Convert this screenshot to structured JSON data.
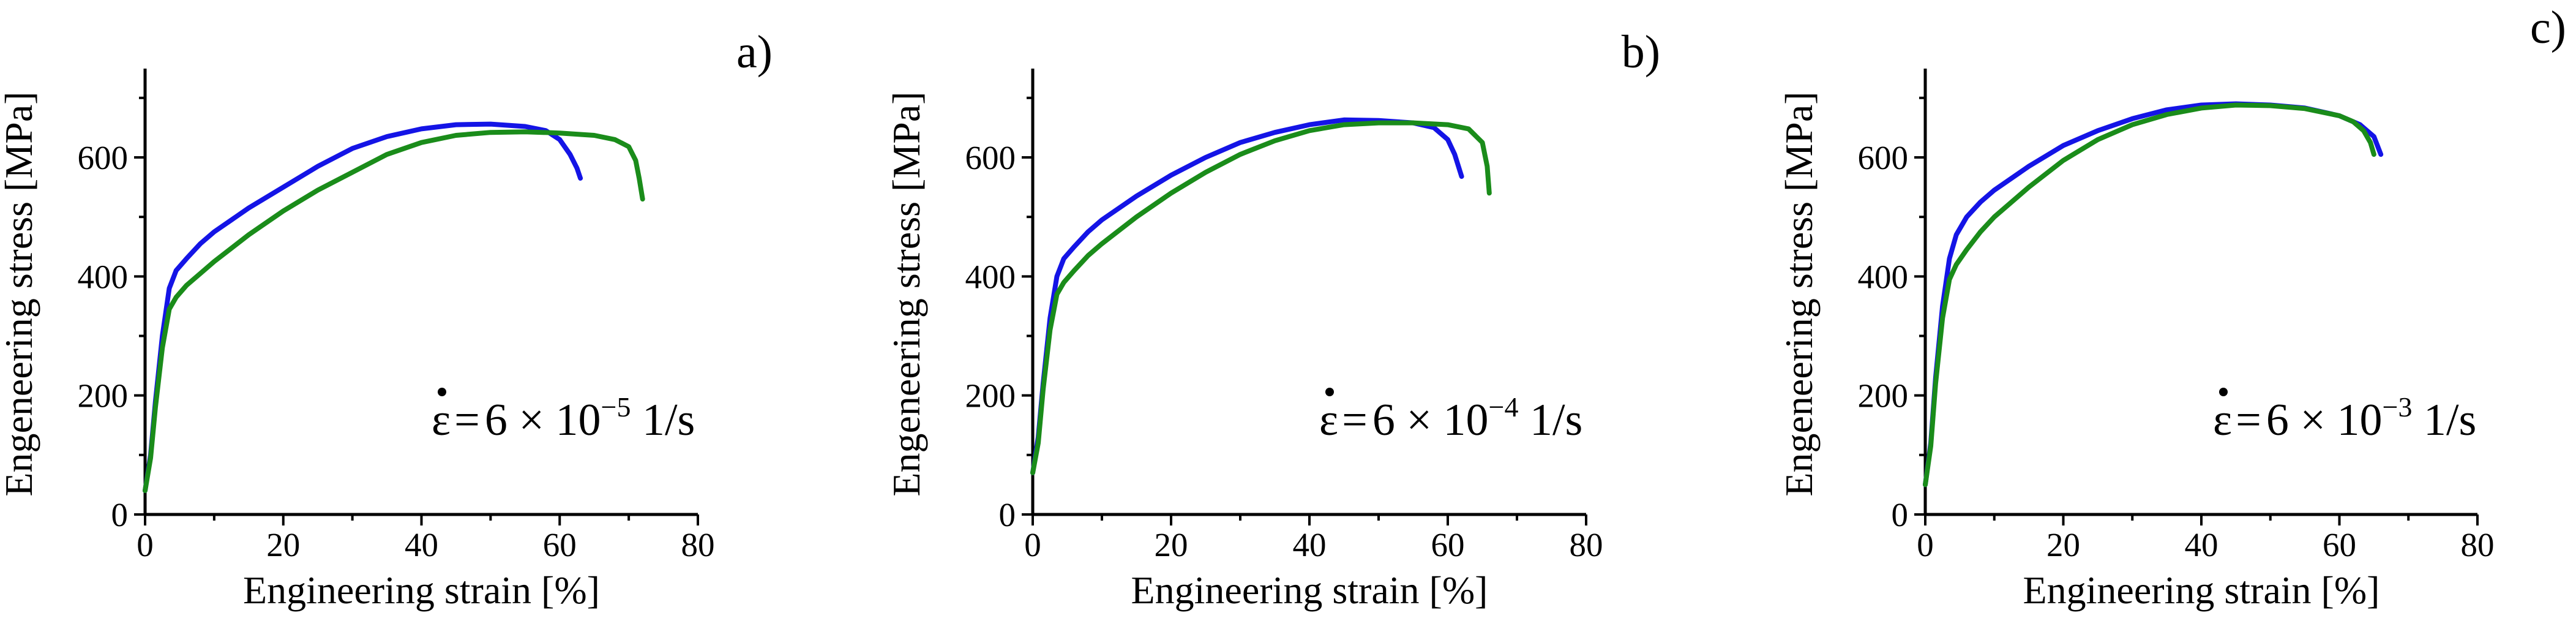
{
  "colors": {
    "series_blue": "#1414e6",
    "series_green": "#1a8c1a"
  },
  "chart_data": [
    {
      "type": "line",
      "panel_label": "a)",
      "xlabel": "Engineering strain [%]",
      "ylabel": "Engeneering stress [MPa]",
      "xlim": [
        0,
        80
      ],
      "ylim": [
        0,
        750
      ],
      "xticks": [
        0,
        20,
        40,
        60,
        80
      ],
      "yticks": [
        0,
        200,
        400,
        600
      ],
      "annotation": {
        "symbol": "ε",
        "equals": "=",
        "value": "6 × 10",
        "exponent": "−5",
        "unit": " 1/s"
      },
      "series": [
        {
          "name": "blue",
          "color": "#1414e6",
          "x": [
            0,
            0.8,
            1.5,
            2.5,
            3.5,
            4.5,
            6,
            8,
            10,
            15,
            20,
            25,
            30,
            35,
            40,
            45,
            50,
            55,
            58,
            60,
            61.5,
            62.5,
            63
          ],
          "y": [
            40,
            100,
            190,
            300,
            380,
            410,
            430,
            455,
            475,
            515,
            550,
            585,
            615,
            635,
            648,
            655,
            656,
            652,
            645,
            630,
            605,
            582,
            565
          ]
        },
        {
          "name": "green",
          "color": "#1a8c1a",
          "x": [
            0,
            0.8,
            1.5,
            2.5,
            3.5,
            4.5,
            6,
            8,
            10,
            15,
            20,
            25,
            30,
            35,
            40,
            45,
            50,
            55,
            60,
            65,
            68,
            70,
            71,
            71.5,
            72
          ],
          "y": [
            40,
            95,
            180,
            280,
            345,
            365,
            385,
            405,
            425,
            470,
            510,
            545,
            575,
            605,
            625,
            637,
            642,
            643,
            641,
            637,
            630,
            618,
            595,
            565,
            530
          ]
        }
      ]
    },
    {
      "type": "line",
      "panel_label": "b)",
      "xlabel": "Engineering strain [%]",
      "ylabel": "Engeneering stress [MPa]",
      "xlim": [
        0,
        80
      ],
      "ylim": [
        0,
        750
      ],
      "xticks": [
        0,
        20,
        40,
        60,
        80
      ],
      "yticks": [
        0,
        200,
        400,
        600
      ],
      "annotation": {
        "symbol": "ε",
        "equals": "=",
        "value": "6 × 10",
        "exponent": "−4",
        "unit": " 1/s"
      },
      "series": [
        {
          "name": "blue",
          "color": "#1414e6",
          "x": [
            0,
            0.8,
            1.5,
            2.5,
            3.5,
            4.5,
            6,
            8,
            10,
            15,
            20,
            25,
            30,
            35,
            40,
            45,
            50,
            55,
            58,
            60,
            61,
            62
          ],
          "y": [
            70,
            130,
            220,
            330,
            400,
            430,
            450,
            475,
            495,
            535,
            570,
            600,
            625,
            642,
            655,
            663,
            662,
            658,
            650,
            630,
            605,
            568
          ]
        },
        {
          "name": "green",
          "color": "#1a8c1a",
          "x": [
            0,
            0.8,
            1.5,
            2.5,
            3.5,
            4.5,
            6,
            8,
            10,
            15,
            20,
            25,
            30,
            35,
            40,
            45,
            50,
            55,
            60,
            63,
            65,
            65.7,
            66
          ],
          "y": [
            70,
            120,
            210,
            310,
            370,
            390,
            410,
            435,
            455,
            500,
            540,
            575,
            605,
            628,
            645,
            655,
            658,
            658,
            655,
            648,
            625,
            585,
            540
          ]
        }
      ]
    },
    {
      "type": "line",
      "panel_label": "c)",
      "xlabel": "Engineering strain [%]",
      "ylabel": "Engeneering stress [MPa]",
      "xlim": [
        0,
        80
      ],
      "ylim": [
        0,
        750
      ],
      "xticks": [
        0,
        20,
        40,
        60,
        80
      ],
      "yticks": [
        0,
        200,
        400,
        600
      ],
      "annotation": {
        "symbol": "ε",
        "equals": "=",
        "value": "6 × 10",
        "exponent": "−3",
        "unit": " 1/s"
      },
      "series": [
        {
          "name": "blue",
          "color": "#1414e6",
          "x": [
            0,
            0.8,
            1.5,
            2.5,
            3.5,
            4.5,
            6,
            8,
            10,
            15,
            20,
            25,
            30,
            35,
            40,
            45,
            50,
            55,
            60,
            63,
            65,
            66
          ],
          "y": [
            50,
            120,
            230,
            350,
            430,
            470,
            500,
            525,
            545,
            585,
            620,
            645,
            665,
            680,
            688,
            690,
            688,
            683,
            670,
            655,
            635,
            605
          ]
        },
        {
          "name": "green",
          "color": "#1a8c1a",
          "x": [
            0,
            0.8,
            1.5,
            2.5,
            3.5,
            4.5,
            6,
            8,
            10,
            15,
            20,
            25,
            30,
            35,
            40,
            45,
            50,
            55,
            60,
            62,
            63.5,
            64.5,
            65
          ],
          "y": [
            50,
            115,
            220,
            330,
            395,
            420,
            445,
            475,
            500,
            550,
            595,
            630,
            655,
            672,
            683,
            688,
            687,
            682,
            670,
            660,
            645,
            625,
            605
          ]
        }
      ]
    }
  ]
}
